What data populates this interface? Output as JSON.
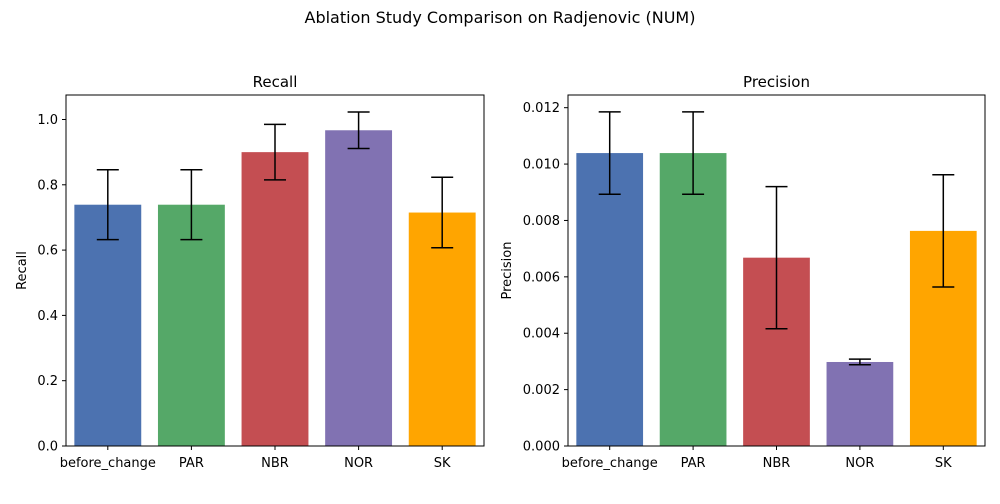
{
  "figure": {
    "suptitle": "Ablation Study Comparison on Radjenovic (NUM)"
  },
  "chart_data": [
    {
      "type": "bar",
      "title": "Recall",
      "xlabel": "",
      "ylabel": "Recall",
      "categories": [
        "before_change",
        "PAR",
        "NBR",
        "NOR",
        "SK"
      ],
      "values": [
        0.739,
        0.739,
        0.9,
        0.967,
        0.715
      ],
      "errors": [
        0.107,
        0.107,
        0.085,
        0.056,
        0.108
      ],
      "colors": [
        "#4c72b0",
        "#55a868",
        "#c44e52",
        "#8172b2",
        "#ffa500"
      ],
      "ylim": [
        0,
        1.075
      ],
      "yticks": [
        0.0,
        0.2,
        0.4,
        0.6,
        0.8,
        1.0
      ],
      "ytick_labels": [
        "0.0",
        "0.2",
        "0.4",
        "0.6",
        "0.8",
        "1.0"
      ],
      "grid": false
    },
    {
      "type": "bar",
      "title": "Precision",
      "xlabel": "",
      "ylabel": "Precision",
      "categories": [
        "before_change",
        "PAR",
        "NBR",
        "NOR",
        "SK"
      ],
      "values": [
        0.01039,
        0.01039,
        0.00668,
        0.00298,
        0.00763
      ],
      "errors": [
        0.00146,
        0.00146,
        0.00252,
        0.0001,
        0.00199
      ],
      "colors": [
        "#4c72b0",
        "#55a868",
        "#c44e52",
        "#8172b2",
        "#ffa500"
      ],
      "ylim": [
        0,
        0.01245
      ],
      "yticks": [
        0.0,
        0.002,
        0.004,
        0.006,
        0.008,
        0.01,
        0.012
      ],
      "ytick_labels": [
        "0.000",
        "0.002",
        "0.004",
        "0.006",
        "0.008",
        "0.010",
        "0.012"
      ],
      "grid": false
    }
  ]
}
